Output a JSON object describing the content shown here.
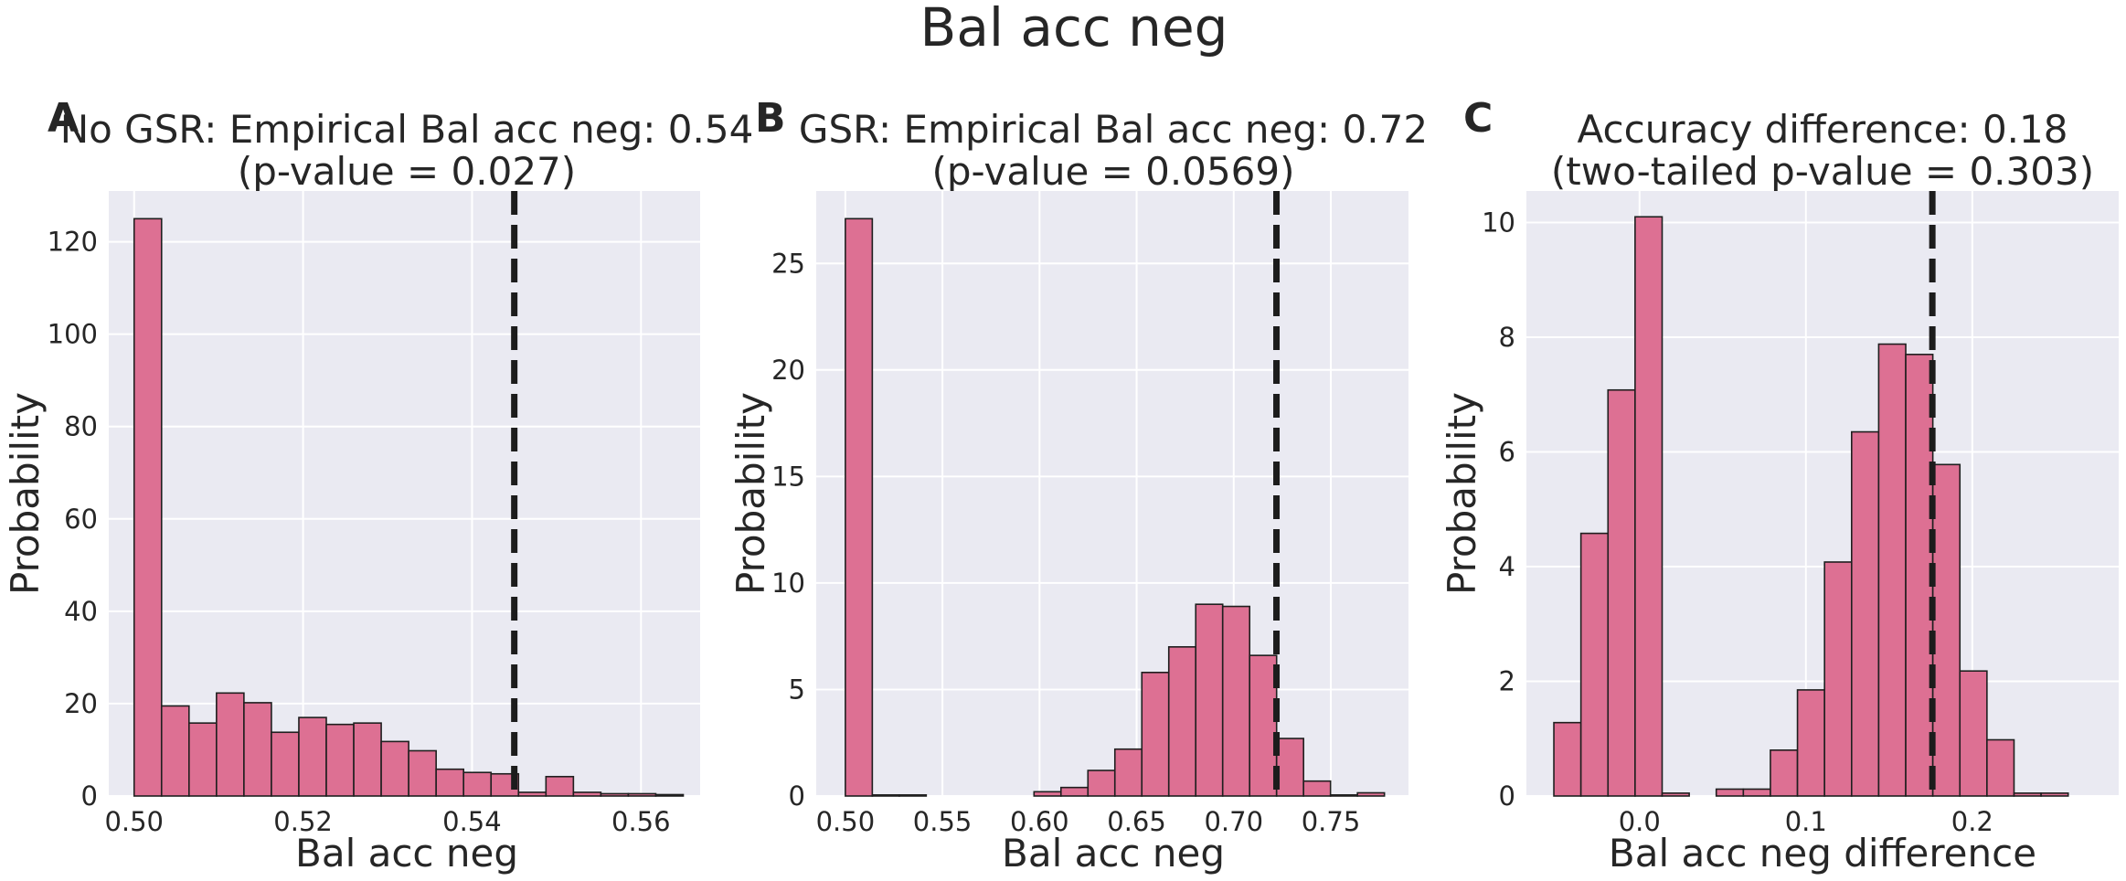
{
  "figure": {
    "suptitle": "Bal acc neg",
    "colors": {
      "bar": "#dd7093",
      "bar_edge": "#1f1f1f",
      "axes_bg": "#eaeaf2",
      "grid": "#ffffff",
      "vline": "#1c1c1c"
    }
  },
  "chart_data": [
    {
      "type": "bar",
      "panel": "A",
      "title_line1": "No GSR: Empirical Bal acc neg: 0.54",
      "title_line2": "(p-value = 0.027)",
      "xlabel": "Bal acc neg",
      "ylabel": "Probability",
      "xlim": [
        0.497,
        0.567
      ],
      "ylim": [
        0,
        131
      ],
      "xticks": [
        0.5,
        0.52,
        0.54,
        0.56
      ],
      "xtick_labels": [
        "0.50",
        "0.52",
        "0.54",
        "0.56"
      ],
      "yticks": [
        0,
        20,
        40,
        60,
        80,
        100,
        120
      ],
      "ytick_labels": [
        "0",
        "20",
        "40",
        "60",
        "80",
        "100",
        "120"
      ],
      "bin_start": 0.5,
      "bin_width": 0.00325,
      "values": [
        125,
        19.5,
        15.8,
        22.3,
        20.2,
        13.8,
        17,
        15.5,
        15.8,
        11.8,
        9.8,
        5.8,
        5.1,
        4.8,
        0.8,
        4.2,
        0.8,
        0.5,
        0.5,
        0.3
      ],
      "vline": 0.545,
      "grid": true
    },
    {
      "type": "bar",
      "panel": "B",
      "title_line1": "GSR: Empirical Bal acc neg: 0.72",
      "title_line2": "(p-value = 0.0569)",
      "xlabel": "Bal acc neg",
      "ylabel": "Probability",
      "xlim": [
        0.485,
        0.79
      ],
      "ylim": [
        0,
        28.4
      ],
      "xticks": [
        0.5,
        0.55,
        0.6,
        0.65,
        0.7,
        0.75
      ],
      "xtick_labels": [
        "0.50",
        "0.55",
        "0.60",
        "0.65",
        "0.70",
        "0.75"
      ],
      "yticks": [
        0,
        5,
        10,
        15,
        20,
        25
      ],
      "ytick_labels": [
        "0",
        "5",
        "10",
        "15",
        "20",
        "25"
      ],
      "bin_start": 0.5,
      "bin_width": 0.01388,
      "values": [
        27.1,
        0.05,
        0.05,
        0,
        0,
        0,
        0,
        0.2,
        0.4,
        1.2,
        2.2,
        5.8,
        7,
        9,
        8.9,
        6.6,
        2.7,
        0.7,
        0.05,
        0.15
      ],
      "vline": 0.722,
      "grid": true
    },
    {
      "type": "bar",
      "panel": "C",
      "title_line1": "Accuracy difference: 0.18",
      "title_line2": "(two-tailed p-value = 0.303)",
      "xlabel": "Bal acc neg difference",
      "ylabel": "Probability",
      "xlim": [
        -0.068,
        0.288
      ],
      "ylim": [
        0,
        10.55
      ],
      "xticks": [
        0.0,
        0.1,
        0.2
      ],
      "xtick_labels": [
        "0.0",
        "0.1",
        "0.2"
      ],
      "yticks": [
        0,
        2,
        4,
        6,
        8,
        10
      ],
      "ytick_labels": [
        "0",
        "2",
        "4",
        "6",
        "8",
        "10"
      ],
      "bin_start": -0.0515,
      "bin_width": 0.01627,
      "values": [
        1.28,
        4.58,
        7.08,
        10.1,
        0.05,
        0,
        0.12,
        0.12,
        0.8,
        1.85,
        4.08,
        6.35,
        7.88,
        7.7,
        5.78,
        2.18,
        0.98,
        0.05,
        0.05
      ],
      "vline": 0.176,
      "grid": true
    }
  ]
}
